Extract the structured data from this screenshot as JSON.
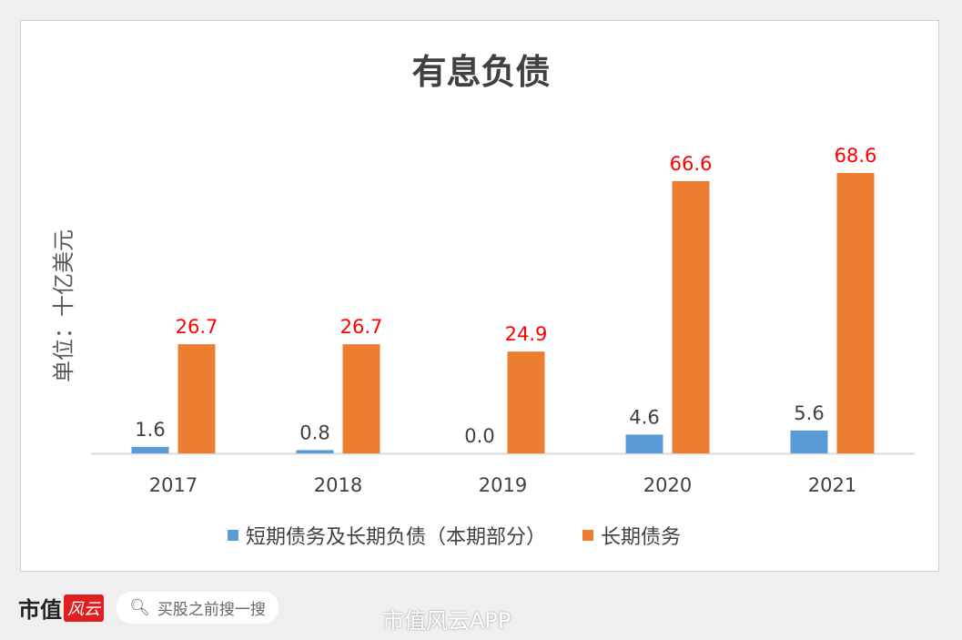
{
  "chart_data": {
    "type": "bar",
    "title": "有息负债",
    "ylabel": "单位：十亿美元",
    "categories": [
      "2017",
      "2018",
      "2019",
      "2020",
      "2021"
    ],
    "series": [
      {
        "name": "短期债务及长期负债（本期部分）",
        "values": [
          1.6,
          0.8,
          0.0,
          4.6,
          5.6
        ],
        "labels": [
          "1.6",
          "0.8",
          "0.0",
          "4.6",
          "5.6"
        ],
        "color": "#5b9bd5",
        "label_color": "#404040"
      },
      {
        "name": "长期债务",
        "values": [
          26.7,
          26.7,
          24.9,
          66.6,
          68.6
        ],
        "labels": [
          "26.7",
          "26.7",
          "24.9",
          "66.6",
          "68.6"
        ],
        "color": "#ed7d31",
        "label_color": "#ff0000"
      }
    ],
    "ylim": [
      0,
      68.6
    ],
    "grid": false,
    "legend": "bottom"
  },
  "watermark": "市值风云",
  "footer": {
    "brand": "市值",
    "brand_mark": "风云",
    "search_placeholder": "买股之前搜一搜",
    "weibo": "市值风云APP"
  }
}
